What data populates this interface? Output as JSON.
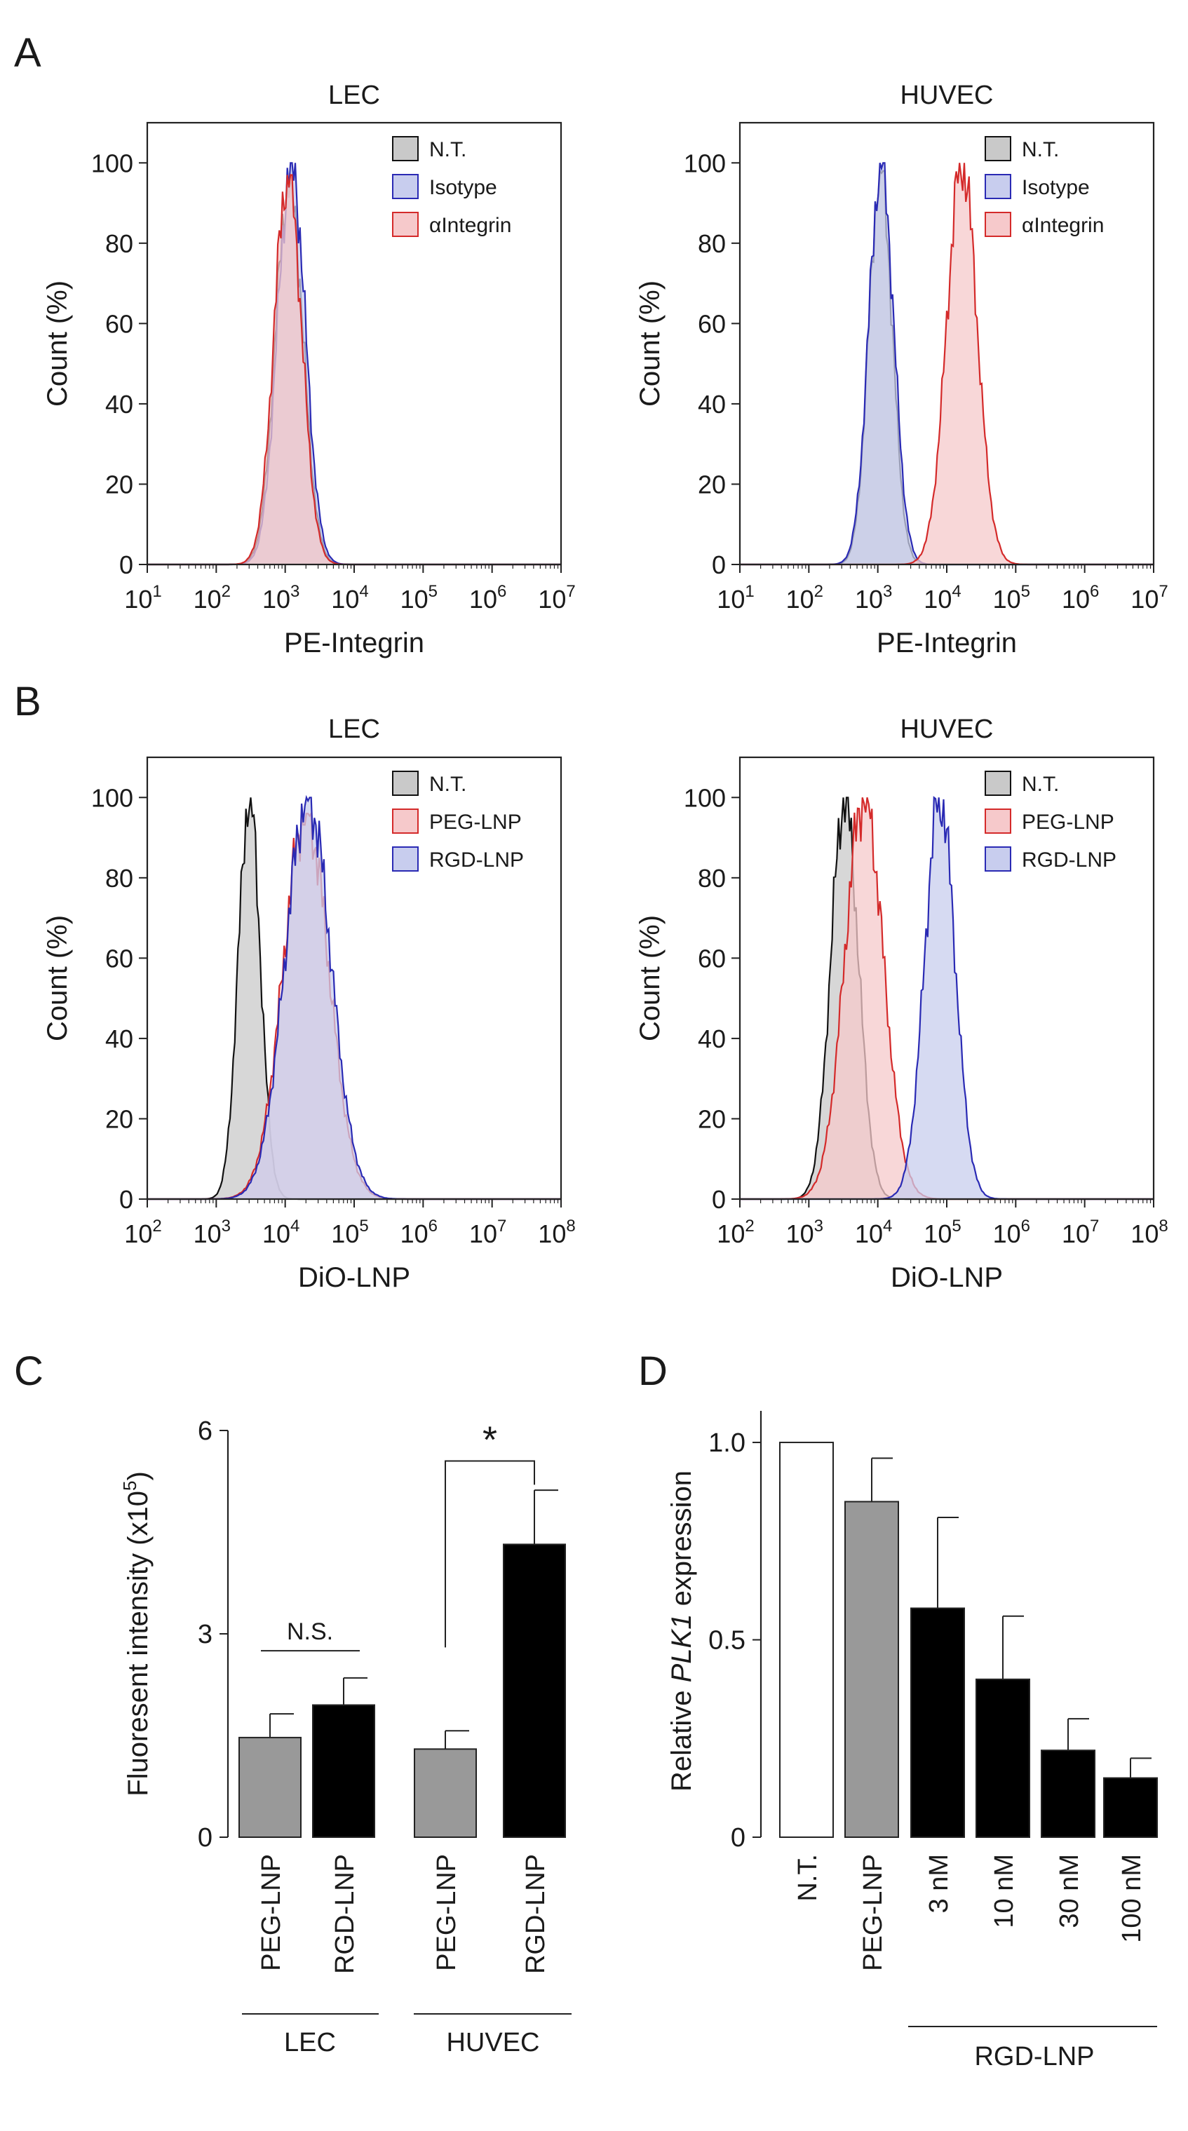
{
  "panel_labels": {
    "a": "A",
    "b": "B",
    "c": "C",
    "d": "D"
  },
  "colors": {
    "nt_fill": "#c9c9c9",
    "nt_line": "#111111",
    "blue_fill": "#c8cdee",
    "blue_line": "#2a2ab4",
    "red_fill": "#f6c9cb",
    "red_line": "#d42a2a",
    "pink_fill": "#dcbcdf",
    "gray_bar": "#999999",
    "black_bar": "#000000",
    "white_bar": "#ffffff"
  },
  "chart_data": [
    {
      "id": "A-LEC",
      "panel": "A",
      "type": "area",
      "title": "LEC",
      "xlabel": "PE-Integrin",
      "ylabel": "Count (%)",
      "xscale": "log",
      "xlim": [
        1,
        7
      ],
      "ylim": [
        0,
        110
      ],
      "xticks": [
        "10",
        "10",
        "10",
        "10",
        "10",
        "10",
        "10"
      ],
      "xtick_exp": [
        "1",
        "2",
        "3",
        "4",
        "5",
        "6",
        "7"
      ],
      "yticks": [
        "0",
        "20",
        "40",
        "60",
        "80",
        "100"
      ],
      "legend": [
        "N.T.",
        "Isotype",
        "αIntegrin"
      ],
      "series": [
        {
          "name": "N.T.",
          "color_key": "nt",
          "mu": 3.06,
          "sigma": 0.2,
          "peak": 95
        },
        {
          "name": "Isotype",
          "color_key": "blue",
          "mu": 3.09,
          "sigma": 0.2,
          "peak": 100
        },
        {
          "name": "αIntegrin",
          "color_key": "red",
          "mu": 3.04,
          "sigma": 0.2,
          "peak": 97
        }
      ]
    },
    {
      "id": "A-HUVEC",
      "panel": "A",
      "type": "area",
      "title": "HUVEC",
      "xlabel": "PE-Integrin",
      "ylabel": "Count (%)",
      "xscale": "log",
      "xlim": [
        1,
        7
      ],
      "ylim": [
        0,
        110
      ],
      "xticks": [
        "10",
        "10",
        "10",
        "10",
        "10",
        "10",
        "10"
      ],
      "xtick_exp": [
        "1",
        "2",
        "3",
        "4",
        "5",
        "6",
        "7"
      ],
      "yticks": [
        "0",
        "20",
        "40",
        "60",
        "80",
        "100"
      ],
      "legend": [
        "N.T.",
        "Isotype",
        "αIntegrin"
      ],
      "series": [
        {
          "name": "N.T.",
          "color_key": "nt",
          "mu": 3.04,
          "sigma": 0.17,
          "peak": 98
        },
        {
          "name": "Isotype",
          "color_key": "blue",
          "mu": 3.05,
          "sigma": 0.18,
          "peak": 100
        },
        {
          "name": "αIntegrin",
          "color_key": "red",
          "mu": 4.22,
          "sigma": 0.22,
          "peak": 100
        }
      ]
    },
    {
      "id": "B-LEC",
      "panel": "B",
      "type": "area",
      "title": "LEC",
      "xlabel": "DiO-LNP",
      "ylabel": "Count (%)",
      "xscale": "log",
      "xlim": [
        2,
        8
      ],
      "ylim": [
        0,
        110
      ],
      "xticks": [
        "10",
        "10",
        "10",
        "10",
        "10",
        "10",
        "10"
      ],
      "xtick_exp": [
        "2",
        "3",
        "4",
        "5",
        "6",
        "7",
        "8"
      ],
      "yticks": [
        "0",
        "20",
        "40",
        "60",
        "80",
        "100"
      ],
      "legend": [
        "N.T.",
        "PEG-LNP",
        "RGD-LNP"
      ],
      "series": [
        {
          "name": "N.T.",
          "color_key": "nt",
          "mu": 3.48,
          "sigma": 0.16,
          "peak": 100
        },
        {
          "name": "PEG-LNP",
          "color_key": "red",
          "mu": 4.3,
          "sigma": 0.33,
          "peak": 96
        },
        {
          "name": "RGD-LNP",
          "color_key": "blue",
          "mu": 4.33,
          "sigma": 0.33,
          "peak": 100
        }
      ]
    },
    {
      "id": "B-HUVEC",
      "panel": "B",
      "type": "area",
      "title": "HUVEC",
      "xlabel": "DiO-LNP",
      "ylabel": "Count (%)",
      "xscale": "log",
      "xlim": [
        2,
        8
      ],
      "ylim": [
        0,
        110
      ],
      "xticks": [
        "10",
        "10",
        "10",
        "10",
        "10",
        "10",
        "10"
      ],
      "xtick_exp": [
        "2",
        "3",
        "4",
        "5",
        "6",
        "7",
        "8"
      ],
      "yticks": [
        "0",
        "20",
        "40",
        "60",
        "80",
        "100"
      ],
      "legend": [
        "N.T.",
        "PEG-LNP",
        "RGD-LNP"
      ],
      "series": [
        {
          "name": "N.T.",
          "color_key": "nt",
          "mu": 3.52,
          "sigma": 0.2,
          "peak": 100
        },
        {
          "name": "PEG-LNP",
          "color_key": "red",
          "mu": 3.8,
          "sigma": 0.28,
          "peak": 100
        },
        {
          "name": "RGD-LNP",
          "color_key": "blue",
          "mu": 4.9,
          "sigma": 0.22,
          "peak": 100
        }
      ]
    },
    {
      "id": "C",
      "panel": "C",
      "type": "bar",
      "ylabel": "Fluoresent intensity (x10",
      "ylabel_exp": "5",
      "ylabel_close": ")",
      "ylim": [
        0,
        6
      ],
      "yticks": [
        "0",
        "3",
        "6"
      ],
      "categories": [
        "PEG-LNP",
        "RGD-LNP",
        "PEG-LNP",
        "RGD-LNP"
      ],
      "values": [
        1.47,
        1.95,
        1.3,
        4.32
      ],
      "errors": [
        0.35,
        0.4,
        0.27,
        0.8
      ],
      "bar_colors": [
        "gray",
        "black",
        "gray",
        "black"
      ],
      "groups": [
        "LEC",
        "HUVEC"
      ],
      "annotations": {
        "ns": "N.S.",
        "star": "*"
      }
    },
    {
      "id": "D",
      "panel": "D",
      "type": "bar",
      "ylabel_pre": "Relative ",
      "ylabel_italic": "PLK1",
      "ylabel_post": " expression",
      "ylim": [
        0,
        1.08
      ],
      "yticks": [
        "0",
        "0.5",
        "1.0"
      ],
      "categories": [
        "N.T.",
        "PEG-LNP",
        "3 nM",
        "10 nM",
        "30 nM",
        "100 nM"
      ],
      "values": [
        1.0,
        0.85,
        0.58,
        0.4,
        0.22,
        0.15
      ],
      "errors": [
        0,
        0.11,
        0.23,
        0.16,
        0.08,
        0.05
      ],
      "bar_colors": [
        "white",
        "gray",
        "black",
        "black",
        "black",
        "black"
      ],
      "group_label": "RGD-LNP"
    }
  ]
}
